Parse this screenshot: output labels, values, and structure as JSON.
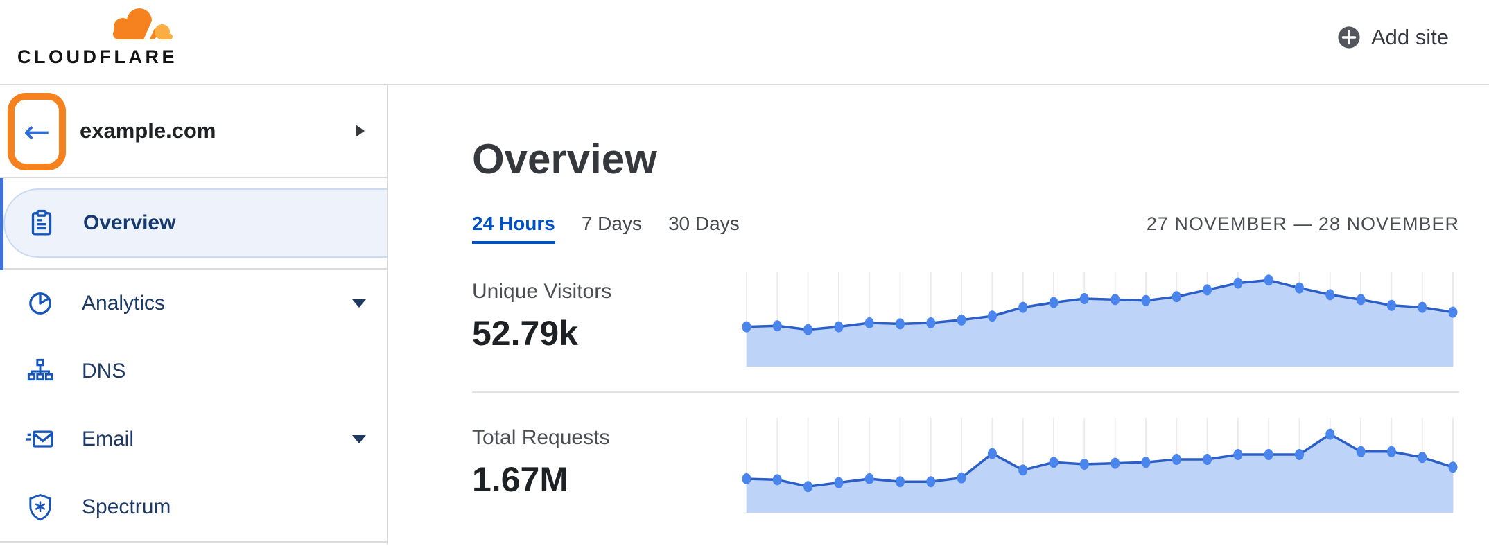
{
  "header": {
    "logo_text": "CLOUDFLARE",
    "add_site_label": "Add site"
  },
  "sidebar": {
    "site_name": "example.com",
    "items": [
      {
        "label": "Overview",
        "icon": "clipboard-icon",
        "active": true,
        "expandable": false
      },
      {
        "label": "Analytics",
        "icon": "pie-chart-icon",
        "active": false,
        "expandable": true
      },
      {
        "label": "DNS",
        "icon": "sitemap-icon",
        "active": false,
        "expandable": false
      },
      {
        "label": "Email",
        "icon": "envelope-icon",
        "active": false,
        "expandable": true
      },
      {
        "label": "Spectrum",
        "icon": "shield-icon",
        "active": false,
        "expandable": false
      }
    ]
  },
  "main": {
    "title": "Overview",
    "tabs": [
      {
        "label": "24 Hours",
        "active": true
      },
      {
        "label": "7 Days",
        "active": false
      },
      {
        "label": "30 Days",
        "active": false
      }
    ],
    "date_range": "27 NOVEMBER — 28 NOVEMBER",
    "metrics": [
      {
        "label": "Unique Visitors",
        "value": "52.79k"
      },
      {
        "label": "Total Requests",
        "value": "1.67M"
      }
    ]
  },
  "chart_data": [
    {
      "type": "area",
      "title": "Unique Visitors",
      "summary_value": "52.79k",
      "period": "24 Hours",
      "x_unit": "hour",
      "points": 24,
      "values_unit": "percent_of_chart_height",
      "values": [
        41,
        42,
        38,
        41,
        45,
        44,
        45,
        48,
        52,
        61,
        66,
        70,
        69,
        68,
        72,
        79,
        86,
        89,
        81,
        74,
        69,
        63,
        61,
        56
      ],
      "grid": true,
      "legend": false
    },
    {
      "type": "area",
      "title": "Total Requests",
      "summary_value": "1.67M",
      "period": "24 Hours",
      "x_unit": "hour",
      "points": 24,
      "values_unit": "percent_of_chart_height",
      "values": [
        35,
        34,
        27,
        31,
        35,
        32,
        32,
        36,
        61,
        44,
        52,
        50,
        51,
        52,
        55,
        55,
        60,
        60,
        60,
        81,
        63,
        63,
        57,
        47
      ],
      "grid": true,
      "legend": false
    }
  ],
  "colors": {
    "brand_orange": "#F6821F",
    "brand_orange_light": "#FBAD41",
    "highlight_annotation": "#F6821F",
    "link_blue": "#0051c3",
    "icon_blue": "#1656b8",
    "chart_dot": "#4a85ee",
    "chart_line": "#2b5fc7",
    "chart_fill": "#bed3f8",
    "chart_grid": "#ebebee",
    "active_item_bg": "#edf2fb"
  }
}
